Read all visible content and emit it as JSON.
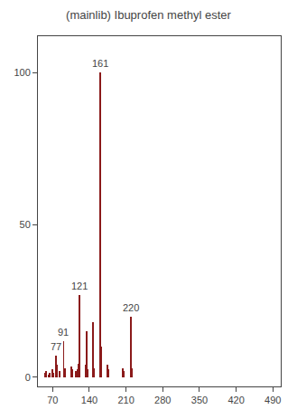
{
  "chart_data": {
    "type": "bar",
    "title": "(mainlib) Ibuprofen methyl ester",
    "x": [
      55,
      57,
      63,
      65,
      69,
      71,
      77,
      79,
      83,
      91,
      93,
      105,
      107,
      115,
      117,
      119,
      120,
      121,
      122,
      133,
      134,
      135,
      136,
      147,
      148,
      161,
      162,
      175,
      176,
      177,
      204,
      205,
      206,
      220,
      221
    ],
    "values": [
      1.5,
      2.0,
      1.0,
      1.5,
      2.5,
      1.5,
      7.0,
      4.0,
      2.0,
      12.0,
      3.0,
      3.5,
      2.5,
      2.0,
      2.5,
      4.5,
      3.0,
      27.0,
      3.5,
      4.0,
      3.5,
      15.0,
      2.5,
      18.0,
      3.0,
      100.0,
      10.0,
      4.0,
      2.0,
      2.5,
      3.0,
      2.0,
      2.0,
      20.0,
      3.0
    ],
    "color": "#8B1A1A",
    "annotations": [
      {
        "x": 77,
        "y": 7.0,
        "text": "77"
      },
      {
        "x": 91,
        "y": 12.0,
        "text": "91"
      },
      {
        "x": 121,
        "y": 27.0,
        "text": "121"
      },
      {
        "x": 161,
        "y": 100.0,
        "text": "161"
      },
      {
        "x": 220,
        "y": 20.0,
        "text": "220"
      }
    ],
    "xlim": [
      42,
      505
    ],
    "ylim": [
      -3,
      112
    ],
    "xticks": [
      70,
      140,
      210,
      280,
      350,
      420,
      490
    ],
    "yticks": [
      0,
      50,
      100
    ],
    "grid": false
  }
}
